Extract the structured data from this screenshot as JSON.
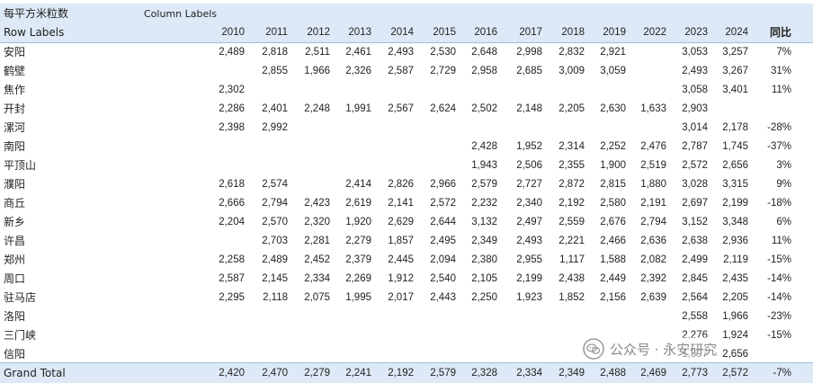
{
  "pivot": {
    "value_field": "每平方米粒数",
    "column_labels": "Column Labels",
    "row_labels": "Row Labels",
    "years": [
      "2010",
      "2011",
      "2012",
      "2013",
      "2014",
      "2015",
      "2016",
      "2017",
      "2018",
      "2019",
      "2022",
      "2023",
      "2024"
    ],
    "yoy_header": "同比",
    "rows": [
      {
        "name": "安阳",
        "values": [
          "2,489",
          "2,818",
          "2,511",
          "2,461",
          "2,493",
          "2,530",
          "2,648",
          "2,998",
          "2,832",
          "2,921",
          "",
          "3,053",
          "3,257"
        ],
        "yoy": "7%"
      },
      {
        "name": "鹤壁",
        "values": [
          "",
          "2,855",
          "1,966",
          "2,326",
          "2,587",
          "2,729",
          "2,958",
          "2,685",
          "3,009",
          "3,059",
          "",
          "2,493",
          "3,267"
        ],
        "yoy": "31%"
      },
      {
        "name": "焦作",
        "values": [
          "2,302",
          "",
          "",
          "",
          "",
          "",
          "",
          "",
          "",
          "",
          "",
          "3,058",
          "3,401"
        ],
        "yoy": "11%"
      },
      {
        "name": "开封",
        "values": [
          "2,286",
          "2,401",
          "2,248",
          "1,991",
          "2,567",
          "2,624",
          "2,502",
          "2,148",
          "2,205",
          "2,630",
          "1,633",
          "2,903",
          ""
        ],
        "yoy": ""
      },
      {
        "name": "漯河",
        "values": [
          "2,398",
          "2,992",
          "",
          "",
          "",
          "",
          "",
          "",
          "",
          "",
          "",
          "3,014",
          "2,178"
        ],
        "yoy": "-28%"
      },
      {
        "name": "南阳",
        "values": [
          "",
          "",
          "",
          "",
          "",
          "",
          "2,428",
          "1,952",
          "2,314",
          "2,252",
          "2,476",
          "2,787",
          "1,745"
        ],
        "yoy": "-37%"
      },
      {
        "name": "平顶山",
        "values": [
          "",
          "",
          "",
          "",
          "",
          "",
          "1,943",
          "2,506",
          "2,355",
          "1,900",
          "2,519",
          "2,572",
          "2,656"
        ],
        "yoy": "3%"
      },
      {
        "name": "濮阳",
        "values": [
          "2,618",
          "2,574",
          "",
          "2,414",
          "2,826",
          "2,966",
          "2,579",
          "2,727",
          "2,872",
          "2,815",
          "1,880",
          "3,028",
          "3,315"
        ],
        "yoy": "9%"
      },
      {
        "name": "商丘",
        "values": [
          "2,666",
          "2,794",
          "2,423",
          "2,619",
          "2,141",
          "2,572",
          "2,232",
          "2,340",
          "2,192",
          "2,580",
          "2,191",
          "2,697",
          "2,199"
        ],
        "yoy": "-18%"
      },
      {
        "name": "新乡",
        "values": [
          "2,204",
          "2,570",
          "2,320",
          "1,920",
          "2,629",
          "2,644",
          "3,132",
          "2,497",
          "2,559",
          "2,676",
          "2,794",
          "3,152",
          "3,348"
        ],
        "yoy": "6%"
      },
      {
        "name": "许昌",
        "values": [
          "",
          "2,703",
          "2,281",
          "2,279",
          "1,857",
          "2,495",
          "2,349",
          "2,493",
          "2,221",
          "2,466",
          "2,636",
          "2,638",
          "2,936"
        ],
        "yoy": "11%"
      },
      {
        "name": "郑州",
        "values": [
          "2,258",
          "2,489",
          "2,452",
          "2,379",
          "2,445",
          "2,094",
          "2,380",
          "2,955",
          "1,117",
          "1,588",
          "2,082",
          "2,499",
          "2,119"
        ],
        "yoy": "-15%"
      },
      {
        "name": "周口",
        "values": [
          "2,587",
          "2,145",
          "2,334",
          "2,269",
          "1,912",
          "2,540",
          "2,105",
          "2,199",
          "2,438",
          "2,449",
          "2,392",
          "2,845",
          "2,435"
        ],
        "yoy": "-14%"
      },
      {
        "name": "驻马店",
        "values": [
          "2,295",
          "2,118",
          "2,075",
          "1,995",
          "2,017",
          "2,443",
          "2,250",
          "1,923",
          "1,852",
          "2,156",
          "2,639",
          "2,564",
          "2,205"
        ],
        "yoy": "-14%"
      },
      {
        "name": "洛阳",
        "values": [
          "",
          "",
          "",
          "",
          "",
          "",
          "",
          "",
          "",
          "",
          "",
          "2,558",
          "1,966"
        ],
        "yoy": "-23%"
      },
      {
        "name": "三门峡",
        "values": [
          "",
          "",
          "",
          "",
          "",
          "",
          "",
          "",
          "",
          "",
          "",
          "2,276",
          "1,924"
        ],
        "yoy": "-15%"
      },
      {
        "name": "信阳",
        "values": [
          "",
          "",
          "",
          "",
          "",
          "",
          "",
          "",
          "",
          "",
          "",
          "1,397",
          "2,656"
        ],
        "yoy": ""
      }
    ],
    "grand_total": {
      "name": "Grand Total",
      "values": [
        "2,420",
        "2,470",
        "2,279",
        "2,241",
        "2,192",
        "2,579",
        "2,328",
        "2,334",
        "2,349",
        "2,488",
        "2,469",
        "2,773",
        "2,572"
      ],
      "yoy": "-7%"
    }
  },
  "watermark": {
    "text": "公众号 · 永安研究",
    "icon": "wechat-icon"
  },
  "colors": {
    "header_band": "#dde9f6",
    "band_line": "#9dbde2"
  }
}
